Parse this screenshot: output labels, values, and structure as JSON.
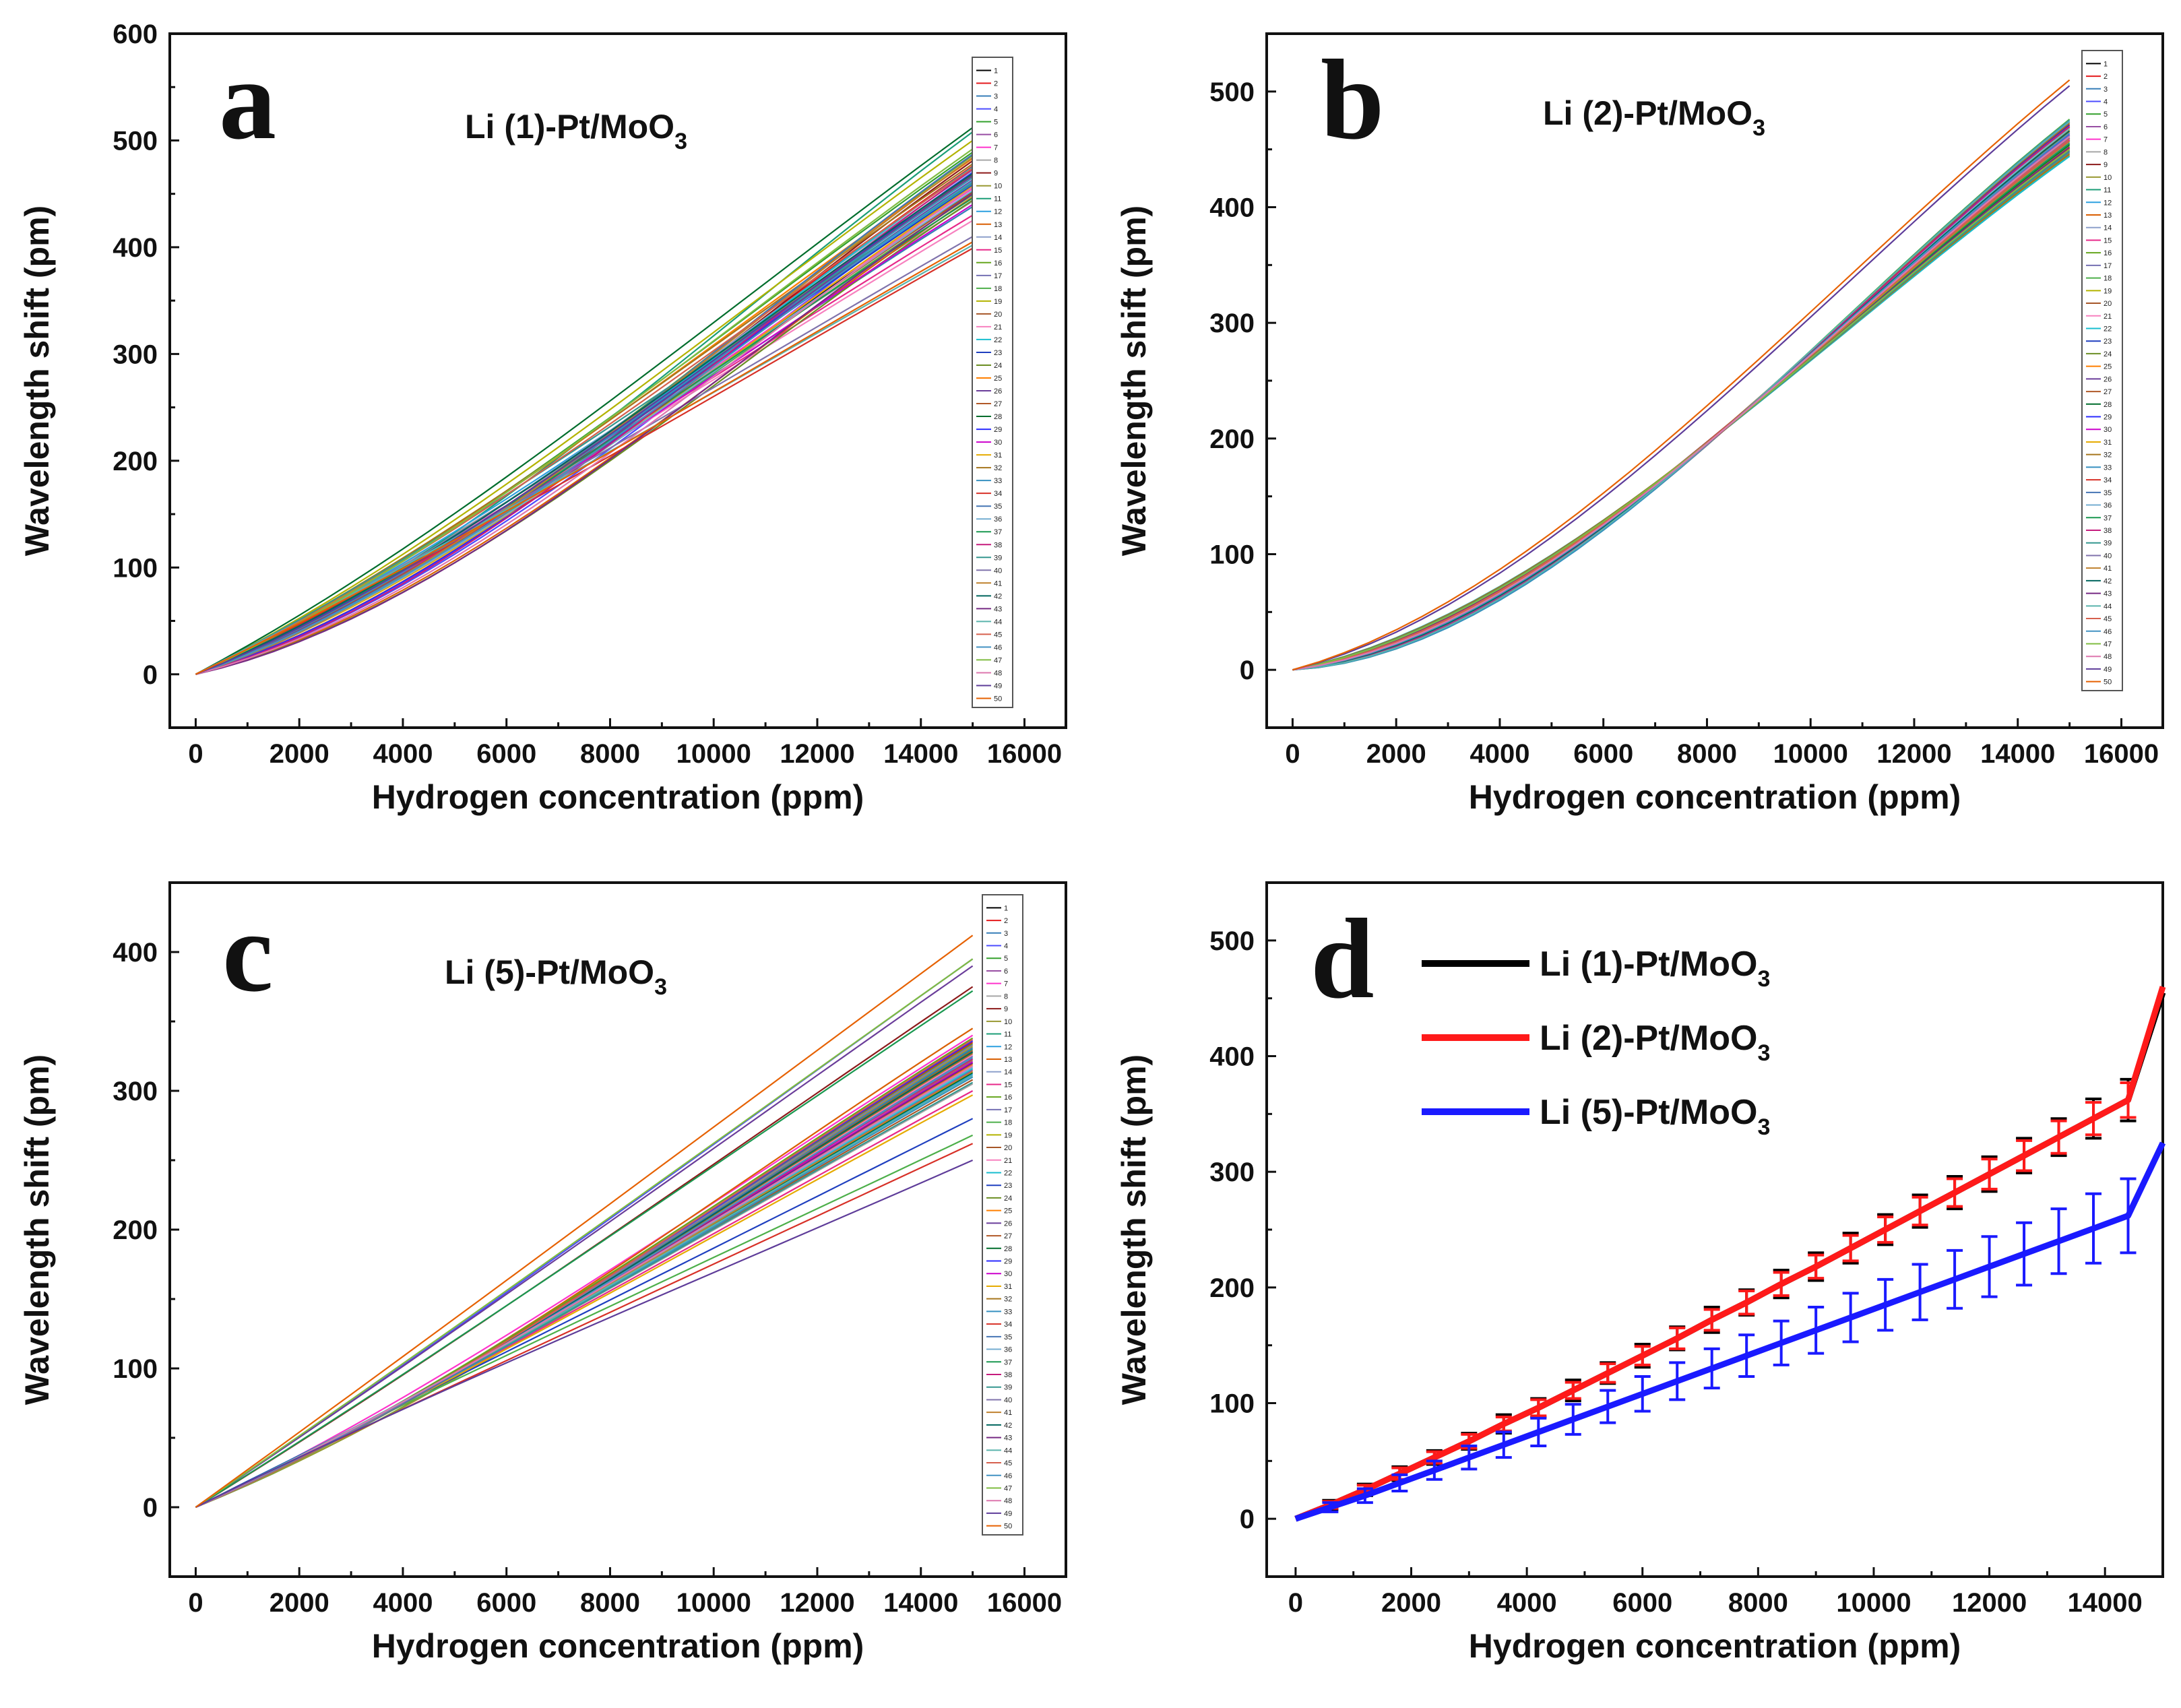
{
  "chart_data": [
    {
      "panel": "a",
      "type": "line",
      "title": "Li (1)-Pt/MoO3",
      "title_main": "Li (1)-Pt/MoO",
      "title_sub": "3",
      "xlabel": "Hydrogen concentration (ppm)",
      "ylabel": "Wavelength shift (pm)",
      "xlim": [
        -500,
        16800
      ],
      "ylim": [
        -50,
        600
      ],
      "xticks": [
        0,
        2000,
        4000,
        6000,
        8000,
        10000,
        12000,
        14000,
        16000
      ],
      "yticks": [
        0,
        100,
        200,
        300,
        400,
        500,
        600
      ],
      "legend_labels": [
        "1",
        "2",
        "3",
        "4",
        "5",
        "6",
        "7",
        "8",
        "9",
        "10",
        "11",
        "12",
        "13",
        "14",
        "15",
        "16",
        "17",
        "18",
        "19",
        "20",
        "21",
        "22",
        "23",
        "24",
        "25",
        "26",
        "27",
        "28",
        "29",
        "30",
        "31",
        "32",
        "33",
        "34",
        "35",
        "36",
        "37",
        "38",
        "39",
        "40",
        "41",
        "42",
        "43",
        "44",
        "45",
        "46",
        "47",
        "48",
        "49",
        "50"
      ],
      "series_endpoints_at_15000": [
        452,
        476,
        438,
        462,
        489,
        470,
        455,
        443,
        481,
        466,
        508,
        459,
        447,
        472,
        430,
        486,
        461,
        449,
        500,
        468,
        425,
        475,
        458,
        444,
        483,
        463,
        451,
        512,
        470,
        440,
        457,
        478,
        465,
        399,
        487,
        453,
        446,
        473,
        460,
        410,
        484,
        469,
        450,
        402,
        474,
        462,
        492,
        456,
        467,
        405
      ],
      "series_curvature": [
        0.35,
        0.42,
        0.28,
        0.55,
        0.3,
        0.47,
        0.38,
        0.22,
        0.5,
        0.33,
        0.44,
        0.26,
        0.58,
        0.36,
        0.2,
        0.48,
        0.31,
        0.4,
        0.27,
        0.52,
        0.18,
        0.45,
        0.34,
        0.6,
        0.29,
        0.41,
        0.37,
        0.24,
        0.53,
        0.32,
        0.46,
        0.25,
        0.39,
        0.15,
        0.5,
        0.43,
        0.3,
        0.56,
        0.21,
        0.12,
        0.49,
        0.35,
        0.62,
        0.1,
        0.28,
        0.44,
        0.33,
        0.57,
        0.38,
        0.14
      ]
    },
    {
      "panel": "b",
      "type": "line",
      "title": "Li (2)-Pt/MoO3",
      "title_main": "Li (2)-Pt/MoO",
      "title_sub": "3",
      "xlabel": "Hydrogen concentration (ppm)",
      "ylabel": "Wavelength shift (pm)",
      "xlim": [
        -500,
        16800
      ],
      "ylim": [
        -50,
        550
      ],
      "xticks": [
        0,
        2000,
        4000,
        6000,
        8000,
        10000,
        12000,
        14000,
        16000
      ],
      "yticks": [
        0,
        100,
        200,
        300,
        400,
        500
      ],
      "legend_labels": [
        "1",
        "2",
        "3",
        "4",
        "5",
        "6",
        "7",
        "8",
        "9",
        "10",
        "11",
        "12",
        "13",
        "14",
        "15",
        "16",
        "17",
        "18",
        "19",
        "20",
        "21",
        "22",
        "23",
        "24",
        "25",
        "26",
        "27",
        "28",
        "29",
        "30",
        "31",
        "32",
        "33",
        "34",
        "35",
        "36",
        "37",
        "38",
        "39",
        "40",
        "41",
        "42",
        "43",
        "44",
        "45",
        "46",
        "47",
        "48",
        "49",
        "50"
      ],
      "series_endpoints_at_15000": [
        455,
        462,
        448,
        470,
        458,
        466,
        452,
        474,
        460,
        445,
        468,
        456,
        472,
        450,
        464,
        459,
        447,
        476,
        453,
        469,
        461,
        444,
        471,
        457,
        465,
        449,
        473,
        454,
        463,
        458,
        467,
        446,
        475,
        451,
        460,
        468,
        455,
        470,
        448,
        462,
        457,
        466,
        452,
        474,
        459,
        464,
        450,
        461,
        505,
        510
      ],
      "series_curvature": [
        0.75,
        0.8,
        0.7,
        0.85,
        0.78,
        0.82,
        0.72,
        0.88,
        0.76,
        0.68,
        0.84,
        0.74,
        0.86,
        0.71,
        0.8,
        0.77,
        0.69,
        0.9,
        0.73,
        0.83,
        0.79,
        0.67,
        0.87,
        0.75,
        0.81,
        0.7,
        0.89,
        0.74,
        0.8,
        0.76,
        0.84,
        0.68,
        0.9,
        0.72,
        0.78,
        0.85,
        0.75,
        0.86,
        0.7,
        0.8,
        0.77,
        0.83,
        0.73,
        0.88,
        0.76,
        0.81,
        0.71,
        0.79,
        0.65,
        0.62
      ]
    },
    {
      "panel": "c",
      "type": "line",
      "title": "Li (5)-Pt/MoO3",
      "title_main": "Li (5)-Pt/MoO",
      "title_sub": "3",
      "xlabel": "Hydrogen concentration (ppm)",
      "ylabel": "Wavelength shift (pm)",
      "xlim": [
        -500,
        16800
      ],
      "ylim": [
        -50,
        450
      ],
      "xticks": [
        0,
        2000,
        4000,
        6000,
        8000,
        10000,
        12000,
        14000,
        16000
      ],
      "yticks": [
        0,
        100,
        200,
        300,
        400
      ],
      "legend_labels": [
        "1",
        "2",
        "3",
        "4",
        "5",
        "6",
        "7",
        "8",
        "9",
        "10",
        "11",
        "12",
        "13",
        "14",
        "15",
        "16",
        "17",
        "18",
        "19",
        "20",
        "21",
        "22",
        "23",
        "24",
        "25",
        "26",
        "27",
        "28",
        "29",
        "30",
        "31",
        "32",
        "33",
        "34",
        "35",
        "36",
        "37",
        "38",
        "39",
        "40",
        "41",
        "42",
        "43",
        "44",
        "45",
        "46",
        "47",
        "48",
        "49",
        "50"
      ],
      "series_endpoints_at_15000": [
        320,
        335,
        310,
        395,
        328,
        315,
        340,
        305,
        375,
        322,
        330,
        312,
        345,
        318,
        300,
        338,
        325,
        268,
        332,
        308,
        326,
        316,
        280,
        334,
        319,
        390,
        329,
        313,
        336,
        321,
        297,
        327,
        310,
        262,
        331,
        317,
        372,
        323,
        306,
        333,
        314,
        328,
        320,
        311,
        337,
        324,
        395,
        318,
        250,
        412
      ],
      "series_curvature": [
        0.2,
        0.25,
        0.15,
        0.05,
        0.3,
        0.18,
        0.22,
        0.12,
        0.08,
        0.28,
        0.24,
        0.16,
        0.3,
        0.2,
        0.1,
        0.26,
        0.22,
        -0.05,
        0.28,
        0.14,
        0.24,
        0.18,
        0.0,
        0.26,
        0.2,
        0.04,
        0.25,
        0.15,
        0.28,
        0.2,
        0.1,
        0.24,
        0.16,
        -0.02,
        0.27,
        0.18,
        0.06,
        0.22,
        0.12,
        0.26,
        0.16,
        0.24,
        0.2,
        0.14,
        0.28,
        0.22,
        0.03,
        0.18,
        -0.1,
        0.02
      ]
    },
    {
      "panel": "d",
      "type": "line",
      "title": "",
      "xlabel": "Hydrogen concentration (ppm)",
      "ylabel": "Wavelength shift (pm)",
      "xlim": [
        -500,
        15000
      ],
      "ylim": [
        -50,
        550
      ],
      "xticks": [
        0,
        2000,
        4000,
        6000,
        8000,
        10000,
        12000,
        14000
      ],
      "yticks": [
        0,
        100,
        200,
        300,
        400,
        500
      ],
      "legend_position": "top-left",
      "x": [
        0,
        600,
        1200,
        1800,
        2400,
        3000,
        3600,
        4200,
        4800,
        5400,
        6000,
        6600,
        7200,
        7800,
        8400,
        9000,
        9600,
        10200,
        10800,
        11400,
        12000,
        12600,
        13200,
        13800,
        14400,
        15000
      ],
      "series": [
        {
          "name": "Li (1)-Pt/MoO3",
          "label_main": "Li (1)-Pt/MoO",
          "label_sub": "3",
          "color": "#000000",
          "values": [
            0,
            12,
            25,
            39,
            53,
            67,
            82,
            96,
            111,
            126,
            141,
            156,
            172,
            187,
            203,
            218,
            234,
            250,
            266,
            282,
            298,
            314,
            330,
            346,
            362,
            455
          ],
          "errors": [
            0,
            4,
            5,
            6,
            6,
            7,
            8,
            8,
            9,
            9,
            10,
            10,
            11,
            11,
            12,
            12,
            13,
            13,
            14,
            14,
            15,
            15,
            16,
            17,
            18,
            0
          ]
        },
        {
          "name": "Li (2)-Pt/MoO3",
          "label_main": "Li (2)-Pt/MoO",
          "label_sub": "3",
          "color": "#ff1a1a",
          "values": [
            0,
            12,
            25,
            39,
            53,
            67,
            82,
            96,
            111,
            126,
            141,
            156,
            172,
            187,
            203,
            218,
            234,
            250,
            266,
            282,
            298,
            314,
            330,
            346,
            362,
            460
          ],
          "errors": [
            0,
            3,
            4,
            5,
            5,
            6,
            6,
            7,
            7,
            8,
            8,
            9,
            9,
            10,
            10,
            10,
            11,
            11,
            12,
            12,
            13,
            13,
            14,
            14,
            15,
            0
          ]
        },
        {
          "name": "Li (5)-Pt/MoO3",
          "label_main": "Li (5)-Pt/MoO",
          "label_sub": "3",
          "color": "#1a1aff",
          "values": [
            0,
            10,
            20,
            31,
            42,
            53,
            64,
            75,
            86,
            97,
            108,
            119,
            130,
            141,
            152,
            163,
            174,
            185,
            196,
            207,
            218,
            229,
            240,
            251,
            262,
            325
          ],
          "errors": [
            0,
            4,
            6,
            7,
            8,
            10,
            11,
            12,
            13,
            14,
            15,
            16,
            17,
            18,
            19,
            20,
            21,
            22,
            24,
            25,
            26,
            27,
            28,
            30,
            32,
            0
          ]
        }
      ]
    }
  ],
  "colors": {
    "palette": [
      "#000000",
      "#e41a1c",
      "#377eb8",
      "#4d4dff",
      "#33a02c",
      "#984ea3",
      "#ff33cc",
      "#a6a6a6",
      "#8c1a1a",
      "#999933",
      "#1b9e77",
      "#2ca0e0",
      "#d95f02",
      "#8da0cb",
      "#e7298a",
      "#66a61e",
      "#7570b3",
      "#4daf4a",
      "#b3b300",
      "#a65628",
      "#f781bf",
      "#17becf",
      "#1f3fbf",
      "#6b8e23",
      "#ff7f00",
      "#6a3d9a",
      "#b15928",
      "#006d2c",
      "#2b2bff",
      "#cc00cc",
      "#e6ab02",
      "#a6761d",
      "#3690c0",
      "#d73027",
      "#4575b4",
      "#74add1",
      "#1a9850",
      "#c51b7d",
      "#35978f",
      "#8073ac",
      "#bf812d",
      "#01665e",
      "#762a83",
      "#5ab4ac",
      "#d6604d",
      "#4393c3",
      "#7fbc41",
      "#de77ae",
      "#5e3c99",
      "#e66101"
    ]
  },
  "panel_letters": {
    "a": "a",
    "b": "b",
    "c": "c",
    "d": "d"
  }
}
